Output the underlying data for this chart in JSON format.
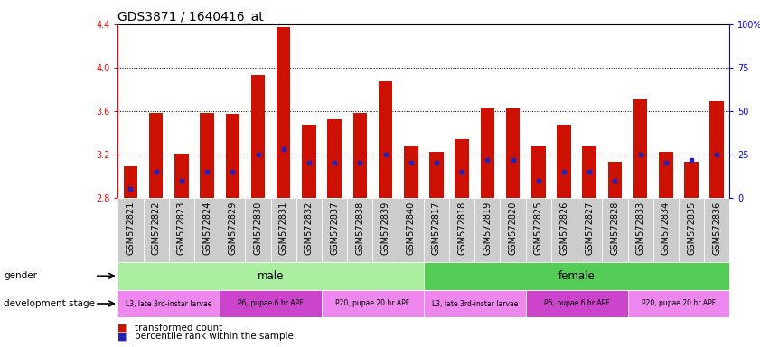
{
  "title": "GDS3871 / 1640416_at",
  "samples": [
    "GSM572821",
    "GSM572822",
    "GSM572823",
    "GSM572824",
    "GSM572829",
    "GSM572830",
    "GSM572831",
    "GSM572832",
    "GSM572837",
    "GSM572838",
    "GSM572839",
    "GSM572840",
    "GSM572817",
    "GSM572818",
    "GSM572819",
    "GSM572820",
    "GSM572825",
    "GSM572826",
    "GSM572827",
    "GSM572828",
    "GSM572833",
    "GSM572834",
    "GSM572835",
    "GSM572836"
  ],
  "bar_tops": [
    3.09,
    3.58,
    3.21,
    3.58,
    3.57,
    3.93,
    4.37,
    3.47,
    3.52,
    3.58,
    3.87,
    3.27,
    3.22,
    3.34,
    3.62,
    3.62,
    3.27,
    3.47,
    3.27,
    3.13,
    3.71,
    3.22,
    3.13,
    3.69
  ],
  "percentile_pct": [
    5,
    15,
    10,
    15,
    15,
    25,
    28,
    20,
    20,
    20,
    25,
    20,
    20,
    15,
    22,
    22,
    10,
    15,
    15,
    10,
    25,
    20,
    22,
    25
  ],
  "ymin": 2.8,
  "ymax": 4.4,
  "yticks_left": [
    2.8,
    3.2,
    3.6,
    4.0,
    4.4
  ],
  "right_yticks": [
    0,
    25,
    50,
    75,
    100
  ],
  "bar_color": "#cc1100",
  "percentile_color": "#2222bb",
  "bar_width": 0.55,
  "bg_color": "#ffffff",
  "title_fontsize": 10,
  "tick_fontsize": 7,
  "label_fontsize": 7.5,
  "male_color": "#aaeea0",
  "female_color": "#55cc55",
  "male_samples": 12,
  "female_samples": 12,
  "dev_stages": [
    {
      "label": "L3, late 3rd-instar larvae",
      "count": 4,
      "color": "#ee88ee"
    },
    {
      "label": "P6, pupae 6 hr APF",
      "count": 4,
      "color": "#cc44cc"
    },
    {
      "label": "P20, pupae 20 hr APF",
      "count": 4,
      "color": "#ee88ee"
    },
    {
      "label": "L3, late 3rd-instar larvae",
      "count": 4,
      "color": "#ee88ee"
    },
    {
      "label": "P6, pupae 6 hr APF",
      "count": 4,
      "color": "#cc44cc"
    },
    {
      "label": "P20, pupae 20 hr APF",
      "count": 4,
      "color": "#ee88ee"
    }
  ],
  "legend_items": [
    {
      "label": "transformed count",
      "color": "#cc1100"
    },
    {
      "label": "percentile rank within the sample",
      "color": "#2222bb"
    }
  ],
  "ticklabel_bg": "#cccccc"
}
